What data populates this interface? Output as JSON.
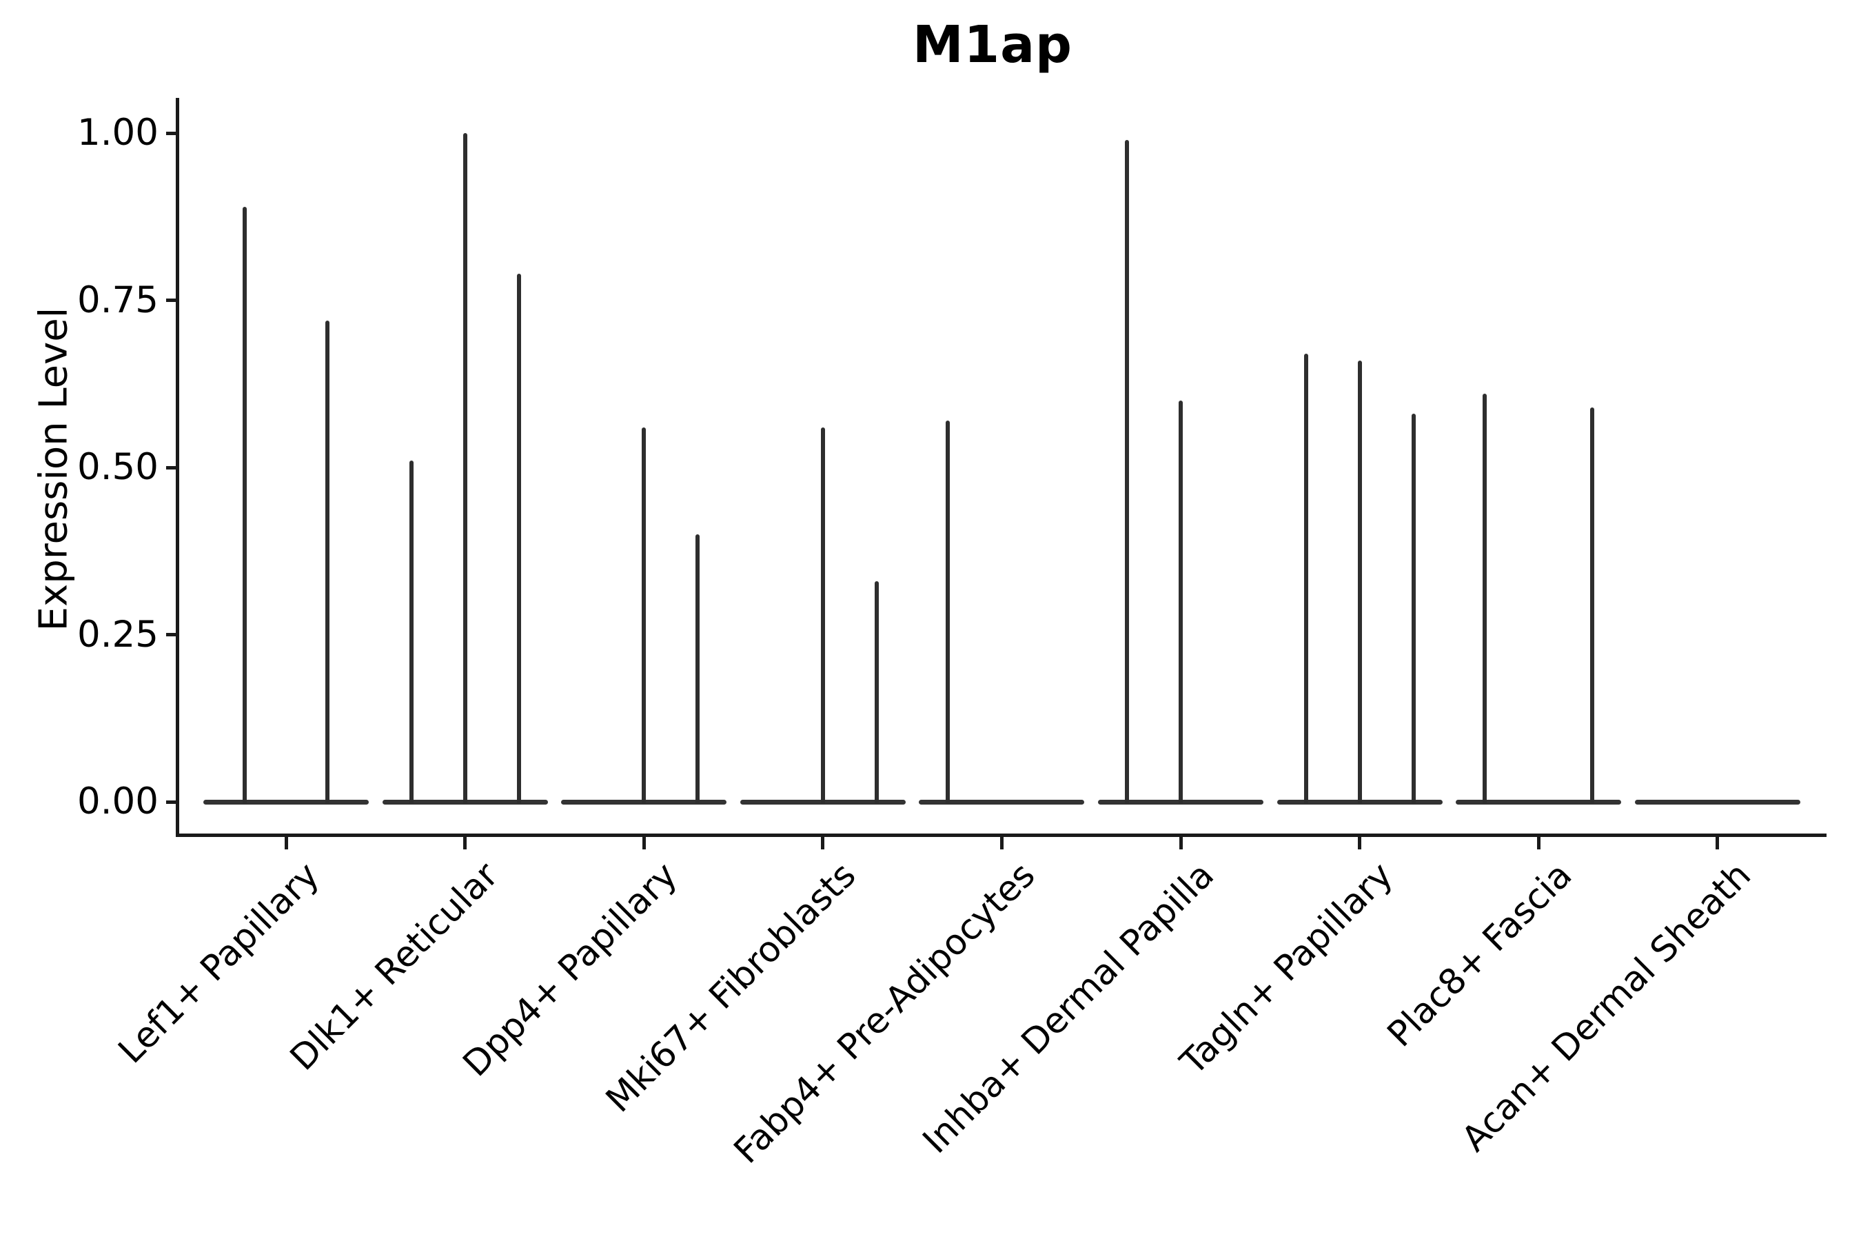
{
  "chart_data": {
    "type": "violin",
    "title": "M1ap",
    "ylabel": "Expression Level",
    "xlabel": "",
    "ylim": [
      0,
      1.05
    ],
    "grid": false,
    "legend_position": "none",
    "yticks": [
      {
        "label": "1.00",
        "value": 1.0
      },
      {
        "label": "0.75",
        "value": 0.75
      },
      {
        "label": "0.50",
        "value": 0.5
      },
      {
        "label": "0.25",
        "value": 0.25
      },
      {
        "label": "0.00",
        "value": 0.0
      }
    ],
    "categories": [
      "Lef1+ Papillary",
      "Dlk1+ Reticular",
      "Dpp4+ Papillary",
      "Mki67+ Fibroblasts",
      "Fabp4+ Pre-Adipocytes",
      "Inhba+ Dermal Papilla",
      "Tagln+ Papillary",
      "Plac8+ Fascia",
      "Acan+ Dermal Sheath"
    ],
    "groups": [
      {
        "category": "Lef1+ Papillary",
        "baseline_value": 0,
        "violins": [
          {
            "offset": -60,
            "tip": 0.89
          },
          {
            "offset": 60,
            "tip": 0.72
          }
        ]
      },
      {
        "category": "Dlk1+ Reticular",
        "baseline_value": 0,
        "violins": [
          {
            "offset": -78,
            "tip": 0.51
          },
          {
            "offset": 0,
            "tip": 1.0
          },
          {
            "offset": 78,
            "tip": 0.79
          }
        ]
      },
      {
        "category": "Dpp4+ Papillary",
        "baseline_value": 0,
        "violins": [
          {
            "offset": 0,
            "tip": 0.56
          },
          {
            "offset": 78,
            "tip": 0.4
          }
        ]
      },
      {
        "category": "Mki67+ Fibroblasts",
        "baseline_value": 0,
        "violins": [
          {
            "offset": 0,
            "tip": 0.56
          },
          {
            "offset": 78,
            "tip": 0.33
          }
        ]
      },
      {
        "category": "Fabp4+ Pre-Adipocytes",
        "baseline_value": 0,
        "violins": [
          {
            "offset": -78,
            "tip": 0.57
          }
        ]
      },
      {
        "category": "Inhba+ Dermal Papilla",
        "baseline_value": 0,
        "violins": [
          {
            "offset": -78,
            "tip": 0.99
          },
          {
            "offset": 0,
            "tip": 0.6
          }
        ]
      },
      {
        "category": "Tagln+ Papillary",
        "baseline_value": 0,
        "violins": [
          {
            "offset": -78,
            "tip": 0.67
          },
          {
            "offset": 0,
            "tip": 0.66
          },
          {
            "offset": 78,
            "tip": 0.58
          }
        ]
      },
      {
        "category": "Plac8+ Fascia",
        "baseline_value": 0,
        "violins": [
          {
            "offset": -78,
            "tip": 0.61
          },
          {
            "offset": 78,
            "tip": 0.59
          }
        ]
      },
      {
        "category": "Acan+ Dermal Sheath",
        "baseline_value": 0,
        "violins": []
      }
    ],
    "colors": {
      "violin": "#2e2e2e",
      "spine": "#1a1a1a",
      "text": "#000000",
      "background": "#ffffff"
    }
  }
}
